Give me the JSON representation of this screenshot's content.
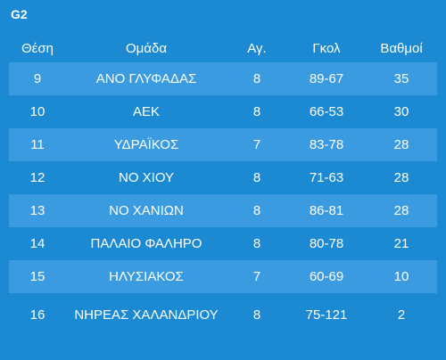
{
  "group_label": "G2",
  "table": {
    "headers": [
      "Θέση",
      "Ομάδα",
      "Αγ.",
      "Γκολ",
      "Βαθμοί"
    ],
    "rows": [
      [
        "9",
        "ΑΝΟ ΓΛΥΦΑΔΑΣ",
        "8",
        "89-67",
        "35"
      ],
      [
        "10",
        "ΑΕΚ",
        "8",
        "66-53",
        "30"
      ],
      [
        "11",
        "ΥΔΡΑΪΚΟΣ",
        "7",
        "83-78",
        "28"
      ],
      [
        "12",
        "ΝΟ ΧΙΟΥ",
        "8",
        "71-63",
        "28"
      ],
      [
        "13",
        "ΝΟ ΧΑΝΙΩΝ",
        "8",
        "86-81",
        "28"
      ],
      [
        "14",
        "ΠΑΛΑΙΟ ΦΑΛΗΡΟ",
        "8",
        "80-78",
        "21"
      ],
      [
        "15",
        "ΗΛΥΣΙΑΚΟΣ",
        "7",
        "60-69",
        "10"
      ],
      [
        "16",
        "ΝΗΡΕΑΣ ΧΑΛΑΝΔΡΙΟΥ",
        "8",
        "75-121",
        "2"
      ]
    ]
  },
  "colors": {
    "background": "#1b8ad3",
    "row_stripe": "#3a9be0",
    "text": "#ffffff"
  }
}
